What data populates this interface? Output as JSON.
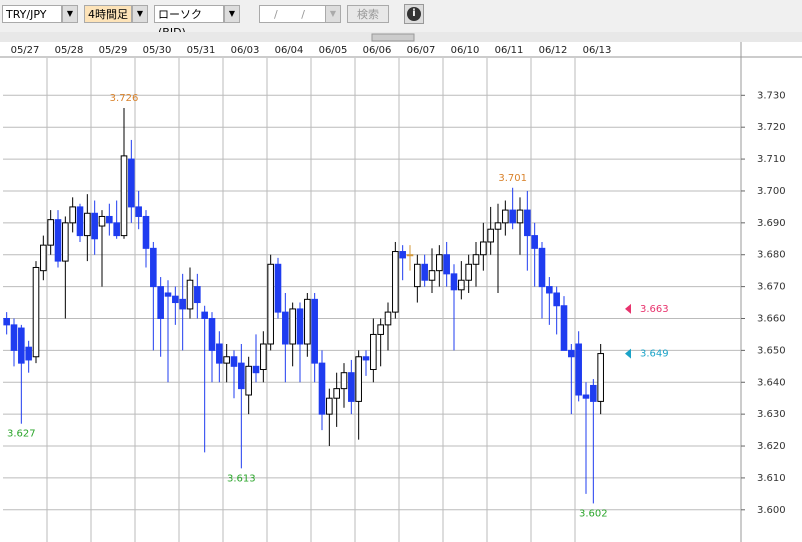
{
  "toolbar": {
    "pair": "TRY/JPY",
    "timeframe": "4時間足",
    "chart_kind": "ローソク(BID)",
    "date_placeholder": "/ /",
    "search": "検索"
  },
  "chart_data": {
    "type": "candlestick",
    "ylim": [
      3.5899,
      3.7417
    ],
    "yticks": [
      {
        "value": 3.6,
        "label": "3.600"
      },
      {
        "value": 3.61,
        "label": "3.610"
      },
      {
        "value": 3.62,
        "label": "3.620"
      },
      {
        "value": 3.63,
        "label": "3.630"
      },
      {
        "value": 3.64,
        "label": "3.640"
      },
      {
        "value": 3.65,
        "label": "3.650"
      },
      {
        "value": 3.66,
        "label": "3.660"
      },
      {
        "value": 3.67,
        "label": "3.670"
      },
      {
        "value": 3.68,
        "label": "3.680"
      },
      {
        "value": 3.69,
        "label": "3.690"
      },
      {
        "value": 3.7,
        "label": "3.700"
      },
      {
        "value": 3.71,
        "label": "3.710"
      },
      {
        "value": 3.72,
        "label": "3.720"
      },
      {
        "value": 3.73,
        "label": "3.730"
      }
    ],
    "grid": true,
    "up_color": "#ffffff",
    "down_color": "#1f3cf0",
    "flat_color": "#d49a3a",
    "high_label_color": "#d9822b",
    "low_label_color": "#2aa52a",
    "days": [
      {
        "label": "05/27",
        "candles": [
          [
            3.66,
            3.662,
            3.655,
            3.658
          ],
          [
            3.658,
            3.66,
            3.645,
            3.65
          ],
          [
            3.657,
            3.658,
            3.627,
            3.646
          ],
          [
            3.651,
            3.653,
            3.643,
            3.647
          ],
          [
            3.648,
            3.678,
            3.646,
            3.676
          ],
          [
            3.675,
            3.686,
            3.672,
            3.683
          ]
        ]
      },
      {
        "label": "05/28",
        "candles": [
          [
            3.683,
            3.694,
            3.68,
            3.691
          ],
          [
            3.691,
            3.694,
            3.676,
            3.678
          ],
          [
            3.678,
            3.692,
            3.66,
            3.69
          ],
          [
            3.69,
            3.698,
            3.687,
            3.695
          ],
          [
            3.695,
            3.696,
            3.684,
            3.686
          ],
          [
            3.686,
            3.699,
            3.678,
            3.693
          ]
        ]
      },
      {
        "label": "05/29",
        "candles": [
          [
            3.693,
            3.697,
            3.68,
            3.685
          ],
          [
            3.689,
            3.694,
            3.67,
            3.692
          ],
          [
            3.692,
            3.696,
            3.686,
            3.69
          ],
          [
            3.69,
            3.697,
            3.685,
            3.686
          ],
          [
            3.686,
            3.726,
            3.685,
            3.711
          ],
          [
            3.71,
            3.716,
            3.69,
            3.695
          ]
        ]
      },
      {
        "label": "05/30",
        "candles": [
          [
            3.695,
            3.7,
            3.688,
            3.692
          ],
          [
            3.692,
            3.694,
            3.676,
            3.682
          ],
          [
            3.682,
            3.684,
            3.65,
            3.67
          ],
          [
            3.67,
            3.673,
            3.648,
            3.66
          ],
          [
            3.668,
            3.672,
            3.64,
            3.667
          ],
          [
            3.667,
            3.67,
            3.658,
            3.665
          ]
        ]
      },
      {
        "label": "05/31",
        "candles": [
          [
            3.666,
            3.674,
            3.65,
            3.663
          ],
          [
            3.663,
            3.676,
            3.66,
            3.672
          ],
          [
            3.67,
            3.674,
            3.66,
            3.665
          ],
          [
            3.662,
            3.664,
            3.618,
            3.66
          ],
          [
            3.66,
            3.662,
            3.64,
            3.65
          ],
          [
            3.652,
            3.656,
            3.64,
            3.646
          ]
        ]
      },
      {
        "label": "06/03",
        "candles": [
          [
            3.646,
            3.652,
            3.64,
            3.648
          ],
          [
            3.648,
            3.65,
            3.635,
            3.645
          ],
          [
            3.646,
            3.652,
            3.613,
            3.638
          ],
          [
            3.636,
            3.648,
            3.63,
            3.645
          ],
          [
            3.645,
            3.655,
            3.64,
            3.643
          ],
          [
            3.644,
            3.656,
            3.64,
            3.652
          ]
        ]
      },
      {
        "label": "06/04",
        "candles": [
          [
            3.652,
            3.68,
            3.65,
            3.677
          ],
          [
            3.677,
            3.679,
            3.66,
            3.662
          ],
          [
            3.662,
            3.668,
            3.64,
            3.652
          ],
          [
            3.652,
            3.665,
            3.645,
            3.663
          ],
          [
            3.663,
            3.665,
            3.64,
            3.652
          ],
          [
            3.652,
            3.668,
            3.648,
            3.666
          ]
        ]
      },
      {
        "label": "06/05",
        "candles": [
          [
            3.666,
            3.668,
            3.64,
            3.646
          ],
          [
            3.646,
            3.65,
            3.625,
            3.63
          ],
          [
            3.63,
            3.638,
            3.62,
            3.635
          ],
          [
            3.635,
            3.643,
            3.626,
            3.638
          ],
          [
            3.638,
            3.646,
            3.632,
            3.643
          ],
          [
            3.643,
            3.647,
            3.63,
            3.634
          ]
        ]
      },
      {
        "label": "06/06",
        "candles": [
          [
            3.634,
            3.65,
            3.622,
            3.648
          ],
          [
            3.648,
            3.65,
            3.642,
            3.647
          ],
          [
            3.644,
            3.66,
            3.64,
            3.655
          ],
          [
            3.655,
            3.66,
            3.645,
            3.658
          ],
          [
            3.658,
            3.665,
            3.65,
            3.662
          ],
          [
            3.662,
            3.684,
            3.66,
            3.681
          ]
        ]
      },
      {
        "label": "06/07",
        "candles": [
          [
            3.681,
            3.683,
            3.672,
            3.679
          ],
          [
            3.68,
            3.683,
            3.675,
            3.68
          ],
          [
            3.67,
            3.68,
            3.665,
            3.677
          ],
          [
            3.677,
            3.68,
            3.67,
            3.672
          ],
          [
            3.672,
            3.682,
            3.668,
            3.675
          ],
          [
            3.675,
            3.683,
            3.67,
            3.68
          ]
        ]
      },
      {
        "label": "06/10",
        "candles": [
          [
            3.68,
            3.684,
            3.67,
            3.674
          ],
          [
            3.674,
            3.677,
            3.65,
            3.669
          ],
          [
            3.669,
            3.678,
            3.666,
            3.672
          ],
          [
            3.672,
            3.68,
            3.668,
            3.677
          ],
          [
            3.677,
            3.684,
            3.67,
            3.68
          ],
          [
            3.68,
            3.69,
            3.675,
            3.684
          ]
        ]
      },
      {
        "label": "06/11",
        "candles": [
          [
            3.684,
            3.695,
            3.68,
            3.688
          ],
          [
            3.688,
            3.696,
            3.668,
            3.69
          ],
          [
            3.69,
            3.697,
            3.686,
            3.694
          ],
          [
            3.694,
            3.701,
            3.688,
            3.69
          ],
          [
            3.69,
            3.698,
            3.68,
            3.694
          ],
          [
            3.694,
            3.7,
            3.675,
            3.686
          ]
        ]
      },
      {
        "label": "06/12",
        "candles": [
          [
            3.686,
            3.69,
            3.67,
            3.682
          ],
          [
            3.682,
            3.684,
            3.66,
            3.67
          ],
          [
            3.67,
            3.673,
            3.658,
            3.668
          ],
          [
            3.668,
            3.67,
            3.655,
            3.664
          ],
          [
            3.664,
            3.667,
            3.65,
            3.65
          ],
          [
            3.65,
            3.652,
            3.63,
            3.648
          ]
        ]
      },
      {
        "label": "06/13",
        "candles": [
          [
            3.652,
            3.656,
            3.634,
            3.636
          ],
          [
            3.636,
            3.64,
            3.605,
            3.635
          ],
          [
            3.639,
            3.641,
            3.602,
            3.634
          ],
          [
            3.634,
            3.652,
            3.63,
            3.649
          ]
        ]
      }
    ],
    "annotations": [
      {
        "value": 3.726,
        "label": "3.726"
      },
      {
        "value": 3.701,
        "label": "3.701"
      },
      {
        "value": 3.613,
        "label": "3.613"
      },
      {
        "value": 3.602,
        "label": "3.602"
      },
      {
        "value": 3.627,
        "label": "3.627"
      }
    ],
    "price_markers": [
      {
        "value": 3.663,
        "label": "3.663",
        "color": "#e8336d"
      },
      {
        "value": 3.649,
        "label": "3.649",
        "color": "#1aa3c8"
      }
    ]
  }
}
